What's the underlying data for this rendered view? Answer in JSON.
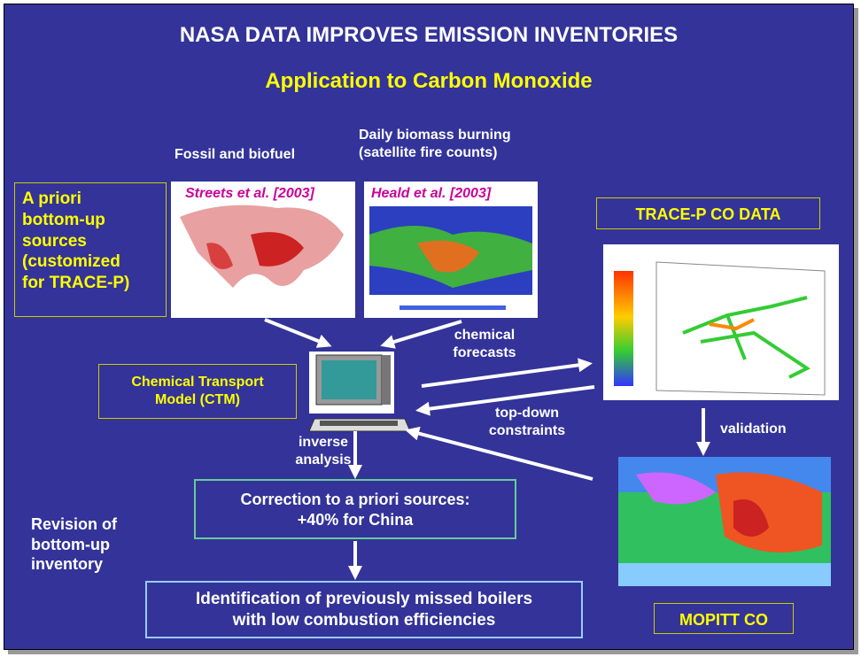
{
  "header": {
    "title": "NASA DATA IMPROVES EMISSION INVENTORIES",
    "subtitle": "Application to Carbon Monoxide"
  },
  "sources": {
    "fossil_label": "Fossil and biofuel",
    "biomass_label": [
      "Daily biomass burning",
      "(satellite fire counts)"
    ],
    "fossil_citation": "Streets et al. [2003]",
    "biomass_citation": "Heald et al. [2003]",
    "apriori_box": [
      "A priori",
      "bottom-up",
      "sources",
      "(customized",
      "for TRACE-P)"
    ]
  },
  "model": {
    "box": [
      "Chemical Transport",
      "Model (CTM)"
    ],
    "forecasts": [
      "chemical",
      "forecasts"
    ],
    "constraints": [
      "top-down",
      "constraints"
    ],
    "inverse": [
      "inverse",
      "analysis"
    ]
  },
  "observations": {
    "tracep": "TRACE-P CO DATA",
    "validation": "validation",
    "mopitt": "MOPITT CO"
  },
  "results": {
    "correction": [
      "Correction to a priori sources:",
      "+40% for China"
    ],
    "revision": [
      "Revision of",
      "bottom-up",
      "inventory"
    ],
    "identification": [
      "Identification of previously missed boilers",
      "with low combustion efficiencies"
    ]
  }
}
